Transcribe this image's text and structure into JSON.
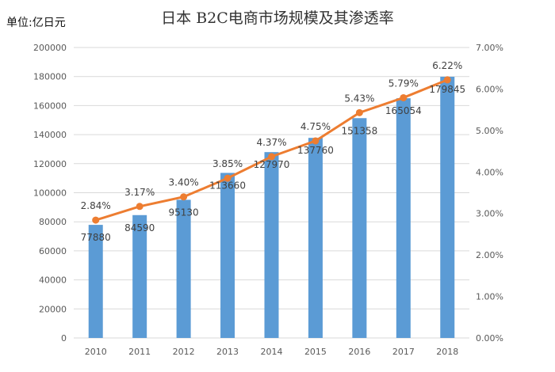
{
  "chart_data": {
    "type": "bar+line",
    "title": "日本 B2C电商市场规模及其渗透率",
    "unit_label": "单位:亿日元",
    "categories": [
      "2010",
      "2011",
      "2012",
      "2013",
      "2014",
      "2015",
      "2016",
      "2017",
      "2018"
    ],
    "series": [
      {
        "type": "bar",
        "axis": "left",
        "values": [
          77880,
          84590,
          95130,
          113660,
          127970,
          137760,
          151358,
          165054,
          179845
        ],
        "color": "#5b9bd5"
      },
      {
        "type": "line",
        "axis": "right",
        "values": [
          2.84,
          3.17,
          3.4,
          3.85,
          4.37,
          4.75,
          5.43,
          5.79,
          6.22
        ],
        "color": "#ed7d31"
      }
    ],
    "left_axis": {
      "ylim": [
        0,
        200000
      ],
      "ticks": [
        "0",
        "20000",
        "40000",
        "60000",
        "80000",
        "100000",
        "120000",
        "140000",
        "160000",
        "180000",
        "200000"
      ]
    },
    "right_axis": {
      "ylim": [
        0,
        7
      ],
      "ticks": [
        "0.00%",
        "1.00%",
        "2.00%",
        "3.00%",
        "4.00%",
        "5.00%",
        "6.00%",
        "7.00%"
      ]
    },
    "grid": true,
    "legend": "none"
  }
}
